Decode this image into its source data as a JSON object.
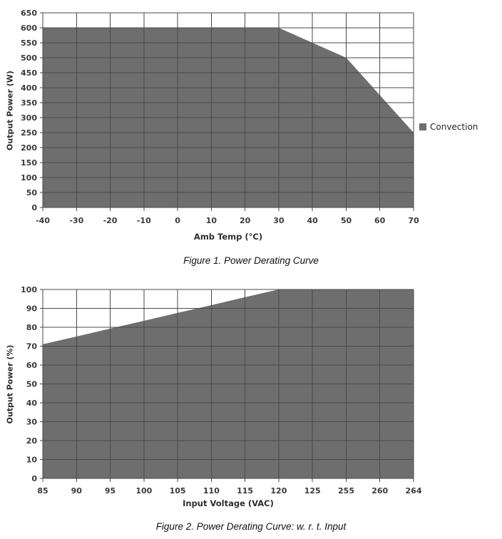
{
  "colors": {
    "area_fill": "#6e6e6e",
    "gridline": "#4a4a4a",
    "tick_label": "#3a3a3a",
    "axis_title": "#2e2e2e",
    "legend_text": "#262626",
    "caption_text": "#111111"
  },
  "figure1": {
    "caption": "Figure 1. Power Derating Curve"
  },
  "figure2": {
    "caption": "Figure 2. Power Derating Curve: w. r. t. Input"
  },
  "chart_data": [
    {
      "type": "area",
      "title": "",
      "xlabel": "Amb Temp (°C)",
      "ylabel": "Output Power (W)",
      "categories": [
        -40,
        -30,
        -20,
        -10,
        0,
        10,
        20,
        30,
        40,
        50,
        60,
        70
      ],
      "series": [
        {
          "name": "Convection",
          "values": [
            600,
            600,
            600,
            600,
            600,
            600,
            600,
            600,
            550,
            500,
            375,
            250
          ]
        }
      ],
      "ylim": [
        0,
        650
      ],
      "y_tick_step": 50,
      "grid": true,
      "legend_position": "right"
    },
    {
      "type": "area",
      "title": "",
      "xlabel": "Input Voltage (VAC)",
      "ylabel": "Output Power (%)",
      "categories": [
        85,
        90,
        95,
        100,
        105,
        110,
        115,
        120,
        125,
        255,
        260,
        264
      ],
      "series": [
        {
          "name": "Convection",
          "values": [
            71,
            75.1,
            79.3,
            83.4,
            87.6,
            91.7,
            95.9,
            100,
            100,
            100,
            100,
            100
          ]
        }
      ],
      "ylim": [
        0,
        100
      ],
      "y_tick_step": 10,
      "grid": true,
      "legend_position": "none"
    }
  ]
}
